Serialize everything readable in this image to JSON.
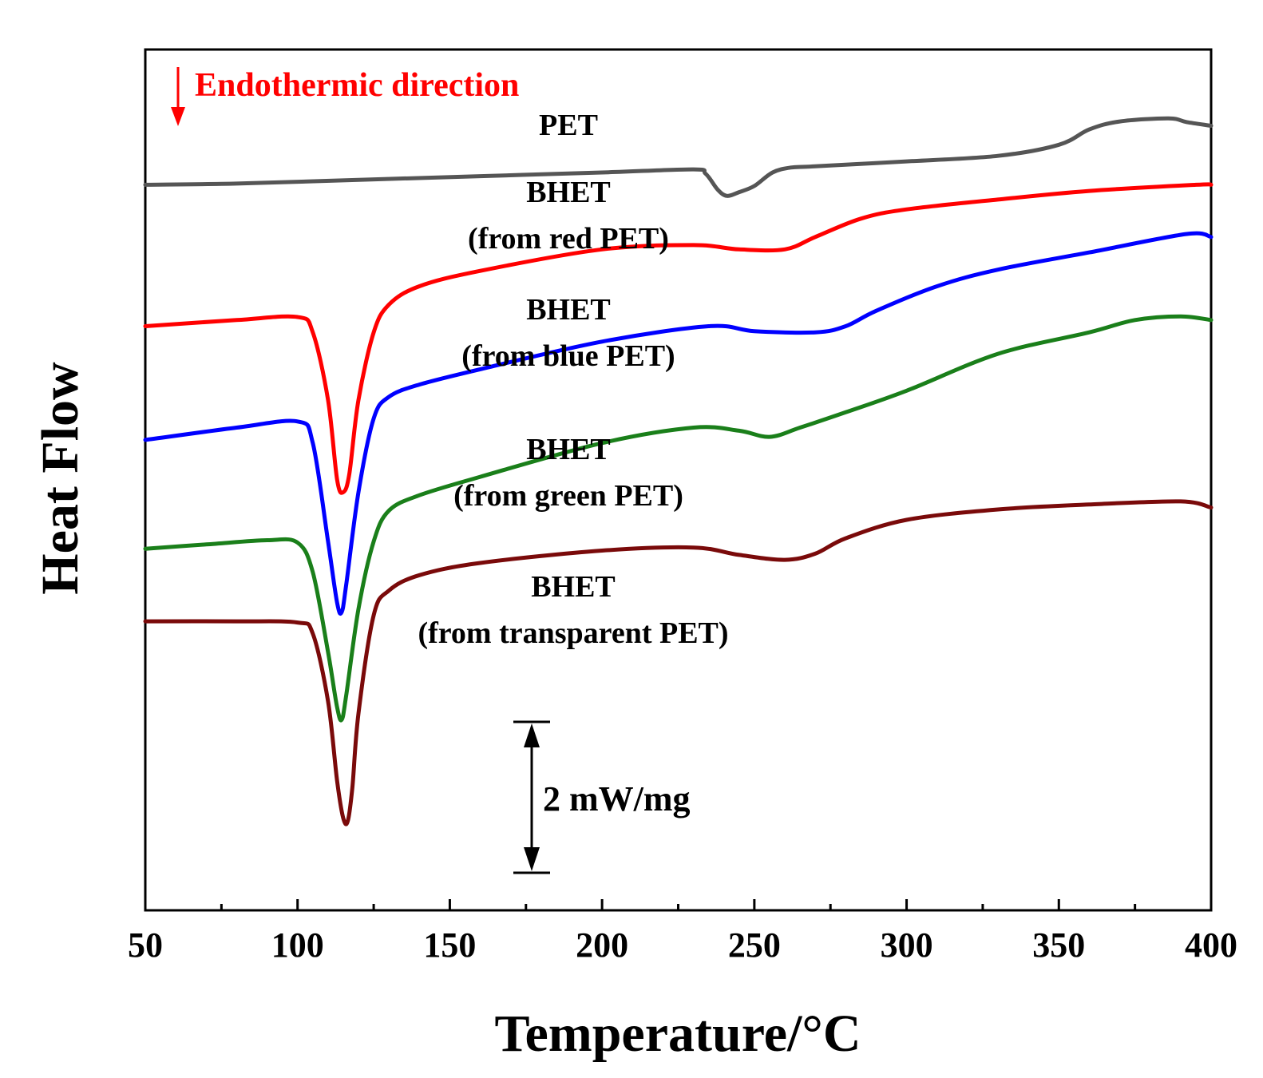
{
  "chart_data": {
    "type": "line",
    "title": "",
    "xlabel": "Temperature/°C",
    "ylabel": "Heat Flow",
    "xlim": [
      50,
      400
    ],
    "xticks": [
      50,
      100,
      150,
      200,
      250,
      300,
      350,
      400
    ],
    "ylim": [
      -11.8,
      2.2
    ],
    "y_units_note": "arbitrary offset units; 1 unit = 1 mW/mg",
    "grid": false,
    "legend": "none",
    "annotations": {
      "endothermic": "Endothermic direction",
      "scale_bar": "2 mW/mg",
      "scale_bar_value": 2
    },
    "series": [
      {
        "name": "PET",
        "label_lines": [
          "PET"
        ],
        "color": "#555555",
        "x": [
          50,
          80,
          120,
          160,
          200,
          230,
          234,
          238,
          241,
          245,
          250,
          256,
          262,
          270,
          300,
          330,
          350,
          360,
          370,
          386,
          392,
          400
        ],
        "y": [
          0.0,
          0.02,
          0.08,
          0.14,
          0.2,
          0.25,
          0.18,
          -0.08,
          -0.18,
          -0.12,
          -0.02,
          0.2,
          0.28,
          0.3,
          0.38,
          0.47,
          0.65,
          0.9,
          1.03,
          1.08,
          1.02,
          0.96
        ]
      },
      {
        "name": "BHET (from red PET)",
        "label_lines": [
          "BHET",
          "(from red PET)"
        ],
        "color": "#ff0000",
        "x": [
          50,
          80,
          100,
          105,
          110,
          113,
          115,
          117,
          120,
          125,
          130,
          140,
          160,
          200,
          230,
          245,
          260,
          270,
          285,
          300,
          330,
          360,
          395,
          400
        ],
        "y": [
          -2.3,
          -2.2,
          -2.15,
          -2.4,
          -3.5,
          -4.8,
          -5.0,
          -4.7,
          -3.5,
          -2.4,
          -1.95,
          -1.65,
          -1.4,
          -1.05,
          -0.98,
          -1.05,
          -1.05,
          -0.85,
          -0.55,
          -0.4,
          -0.24,
          -0.1,
          0.0,
          0.0
        ]
      },
      {
        "name": "BHET (from blue PET)",
        "label_lines": [
          "BHET",
          "(from blue PET)"
        ],
        "color": "#0000ff",
        "x": [
          50,
          80,
          100,
          105,
          110,
          113,
          114.5,
          116,
          120,
          125,
          130,
          140,
          160,
          200,
          235,
          250,
          270,
          280,
          290,
          310,
          330,
          360,
          392,
          400
        ],
        "y": [
          -4.15,
          -3.95,
          -3.85,
          -4.2,
          -5.8,
          -6.8,
          -6.95,
          -6.5,
          -5.0,
          -3.8,
          -3.45,
          -3.25,
          -3.0,
          -2.55,
          -2.3,
          -2.38,
          -2.4,
          -2.3,
          -2.05,
          -1.65,
          -1.38,
          -1.1,
          -0.8,
          -0.85
        ]
      },
      {
        "name": "BHET (from green PET)",
        "label_lines": [
          "BHET",
          "(from green PET)"
        ],
        "color": "#1a7f1a",
        "x": [
          50,
          70,
          90,
          100,
          105,
          110,
          113,
          114.5,
          116,
          120,
          125,
          130,
          140,
          160,
          200,
          230,
          245,
          255,
          265,
          280,
          300,
          330,
          360,
          375,
          390,
          400
        ],
        "y": [
          -5.92,
          -5.85,
          -5.78,
          -5.82,
          -6.3,
          -7.6,
          -8.5,
          -8.7,
          -8.3,
          -6.9,
          -5.8,
          -5.3,
          -5.05,
          -4.75,
          -4.2,
          -3.95,
          -4.0,
          -4.1,
          -3.95,
          -3.7,
          -3.35,
          -2.75,
          -2.4,
          -2.2,
          -2.14,
          -2.2
        ]
      },
      {
        "name": "BHET (from transparent PET)",
        "label_lines": [
          "BHET",
          "(from transparent PET)"
        ],
        "color": "#7a0a0a",
        "x": [
          50,
          80,
          100,
          105,
          110,
          113,
          115,
          116.5,
          118,
          120,
          125,
          130,
          140,
          160,
          200,
          230,
          245,
          260,
          270,
          280,
          300,
          330,
          360,
          390,
          400
        ],
        "y": [
          -7.1,
          -7.1,
          -7.12,
          -7.3,
          -8.4,
          -9.7,
          -10.3,
          -10.35,
          -9.8,
          -8.6,
          -7.0,
          -6.6,
          -6.35,
          -6.15,
          -5.95,
          -5.9,
          -6.02,
          -6.1,
          -6.0,
          -5.75,
          -5.45,
          -5.28,
          -5.2,
          -5.15,
          -5.25
        ]
      }
    ]
  },
  "colors": {
    "annotation": "#ff0000",
    "axis": "#000000"
  }
}
